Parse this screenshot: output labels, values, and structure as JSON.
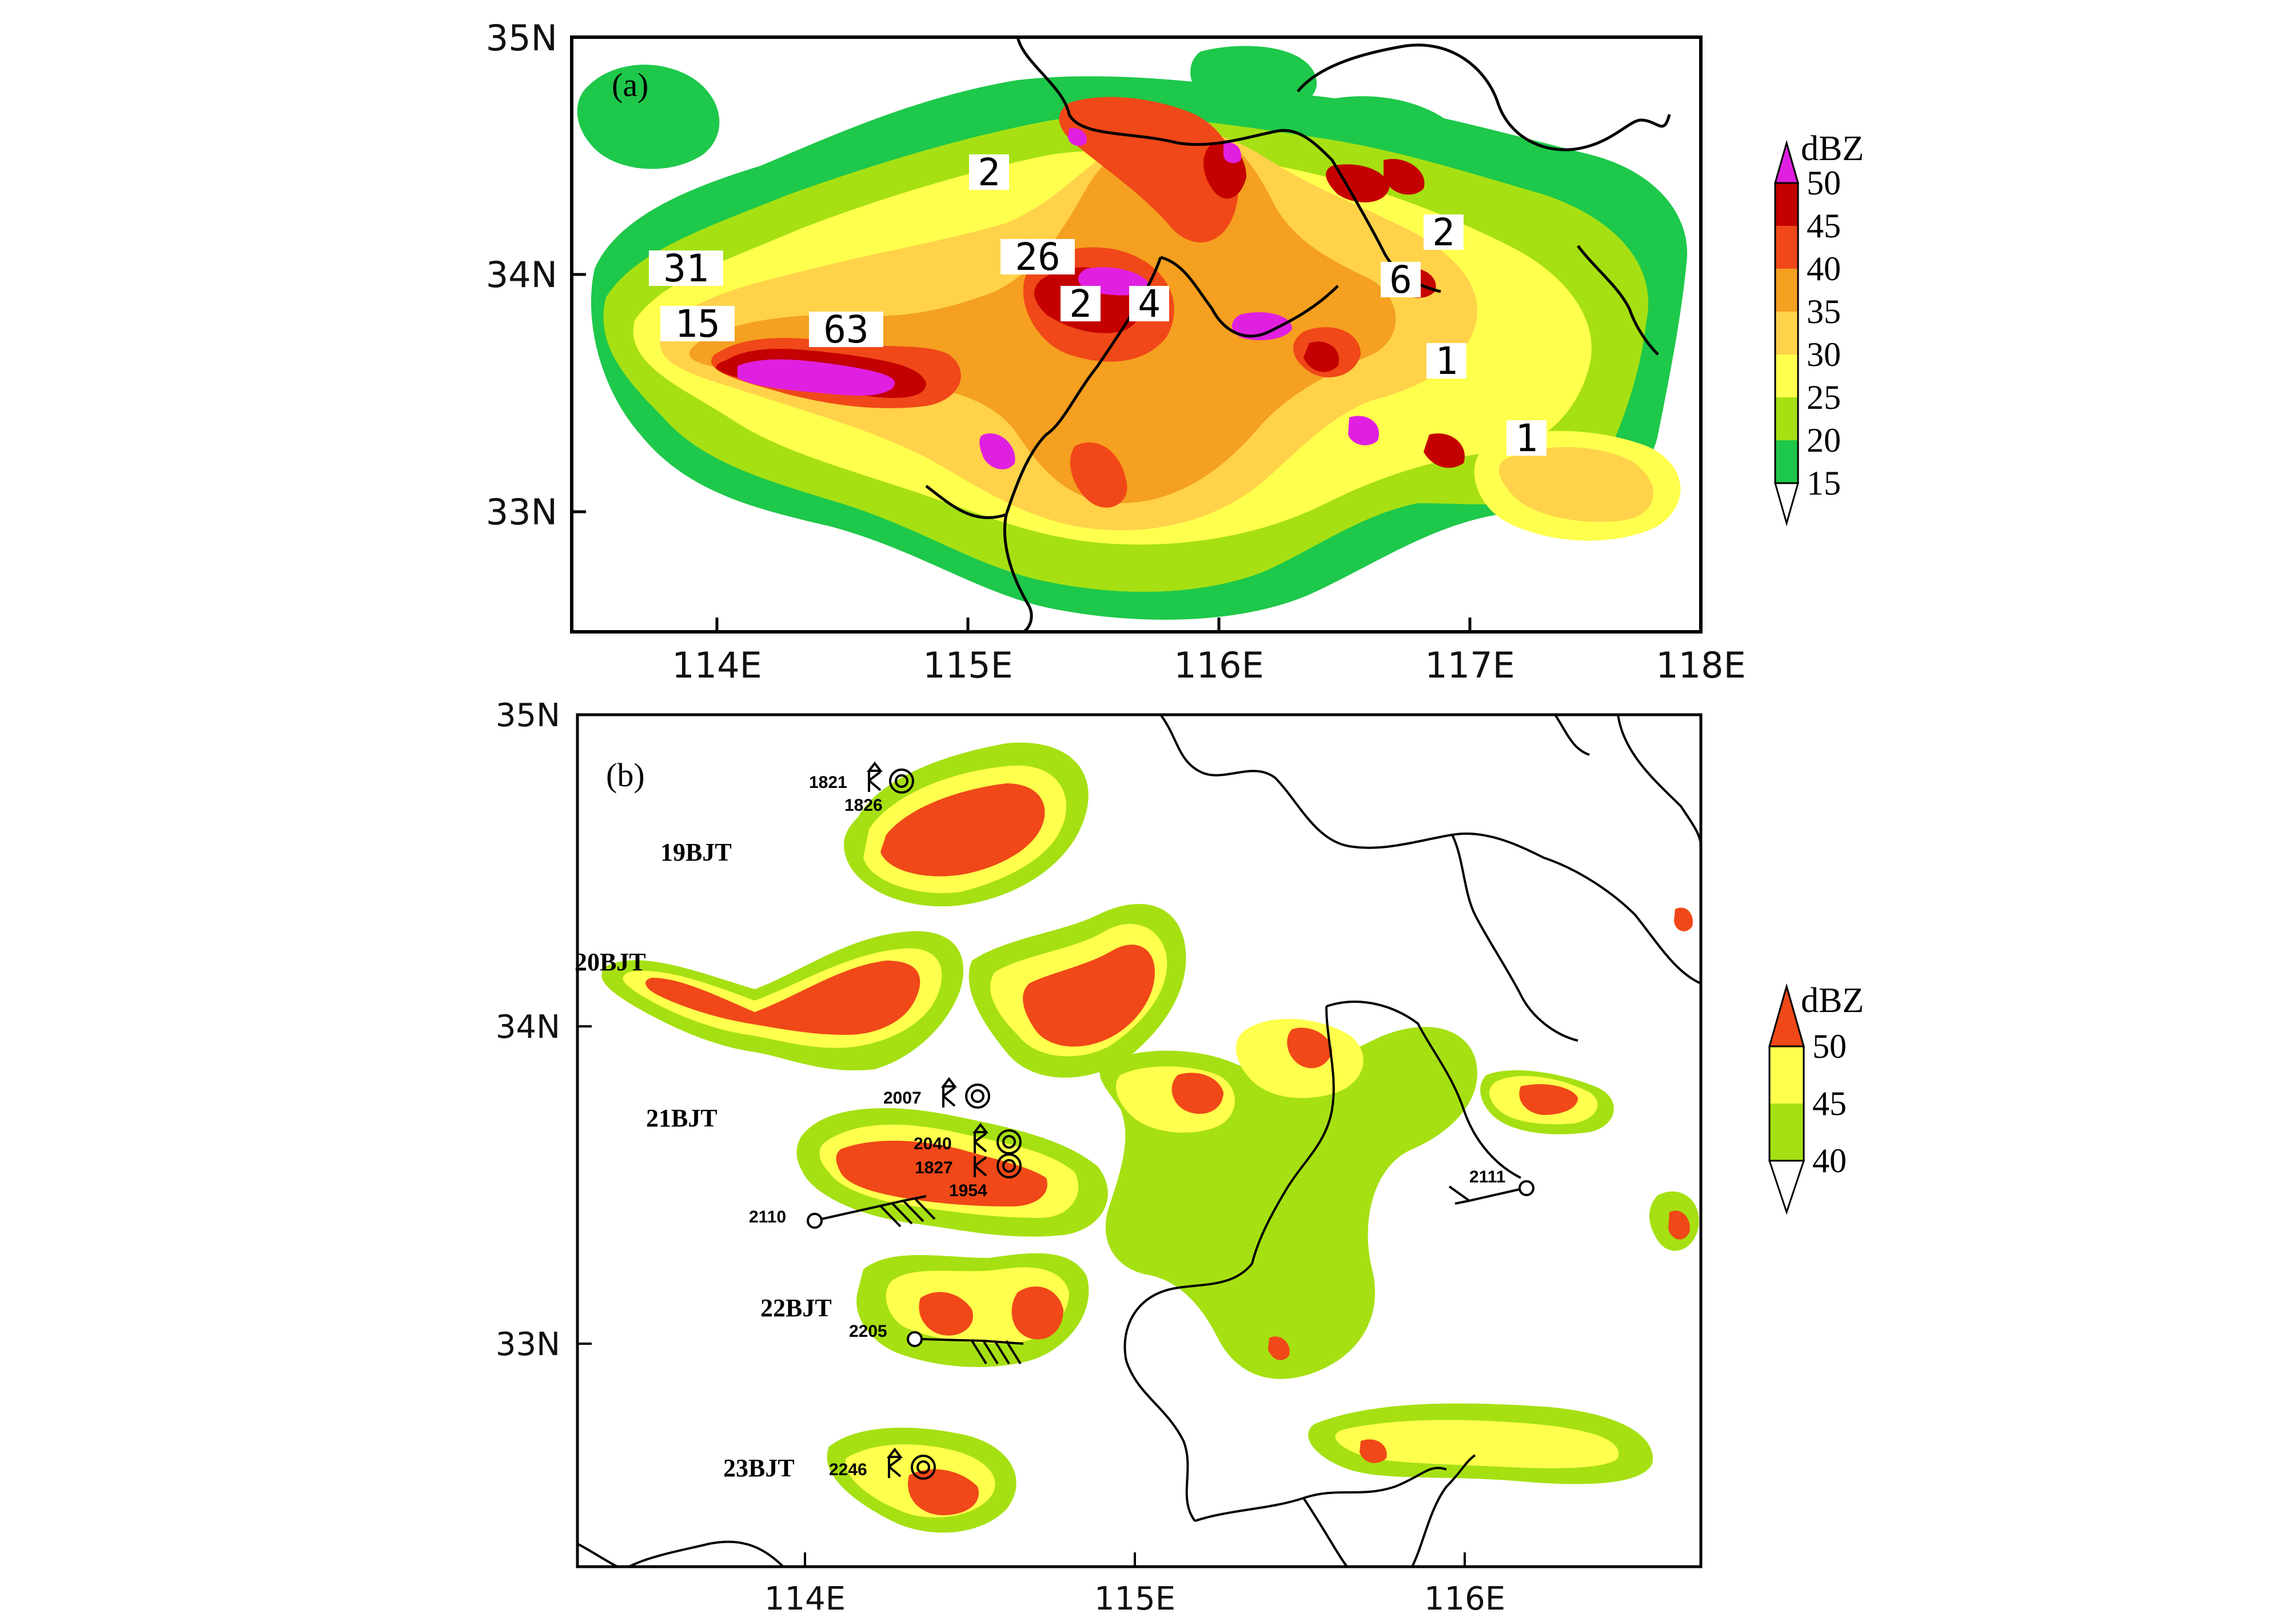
{
  "colors": {
    "c15": "#1ec84a",
    "c20": "#a6e012",
    "c25": "#ffff4d",
    "c30": "#ffd24a",
    "c35": "#f5a020",
    "c40": "#f04818",
    "c45": "#c40000",
    "c50": "#e020e0",
    "b40": "#a6e012",
    "b45": "#ffff4d",
    "b50": "#f04818"
  },
  "panel_a": {
    "label": "(a)",
    "x_ticks": [
      "114E",
      "115E",
      "116E",
      "117E",
      "118E"
    ],
    "y_ticks": [
      "35N",
      "34N",
      "33N"
    ],
    "colorbar": {
      "unit": "dBZ",
      "levels": [
        "50",
        "45",
        "40",
        "35",
        "30",
        "25",
        "20",
        "15"
      ]
    },
    "counts": [
      "2",
      "31",
      "26",
      "15",
      "63",
      "2",
      "4",
      "2",
      "6",
      "1",
      "1"
    ]
  },
  "panel_b": {
    "label": "(b)",
    "x_ticks": [
      "114E",
      "115E",
      "116E"
    ],
    "y_ticks": [
      "35N",
      "34N",
      "33N"
    ],
    "colorbar": {
      "unit": "dBZ",
      "levels": [
        "50",
        "45",
        "40"
      ]
    },
    "time_labels": [
      "19BJT",
      "20BJT",
      "21BJT",
      "22BJT",
      "23BJT"
    ],
    "obs_times": [
      "1821",
      "1826",
      "2007",
      "2040",
      "1827",
      "1954",
      "2110",
      "2111",
      "2205",
      "2246"
    ]
  }
}
